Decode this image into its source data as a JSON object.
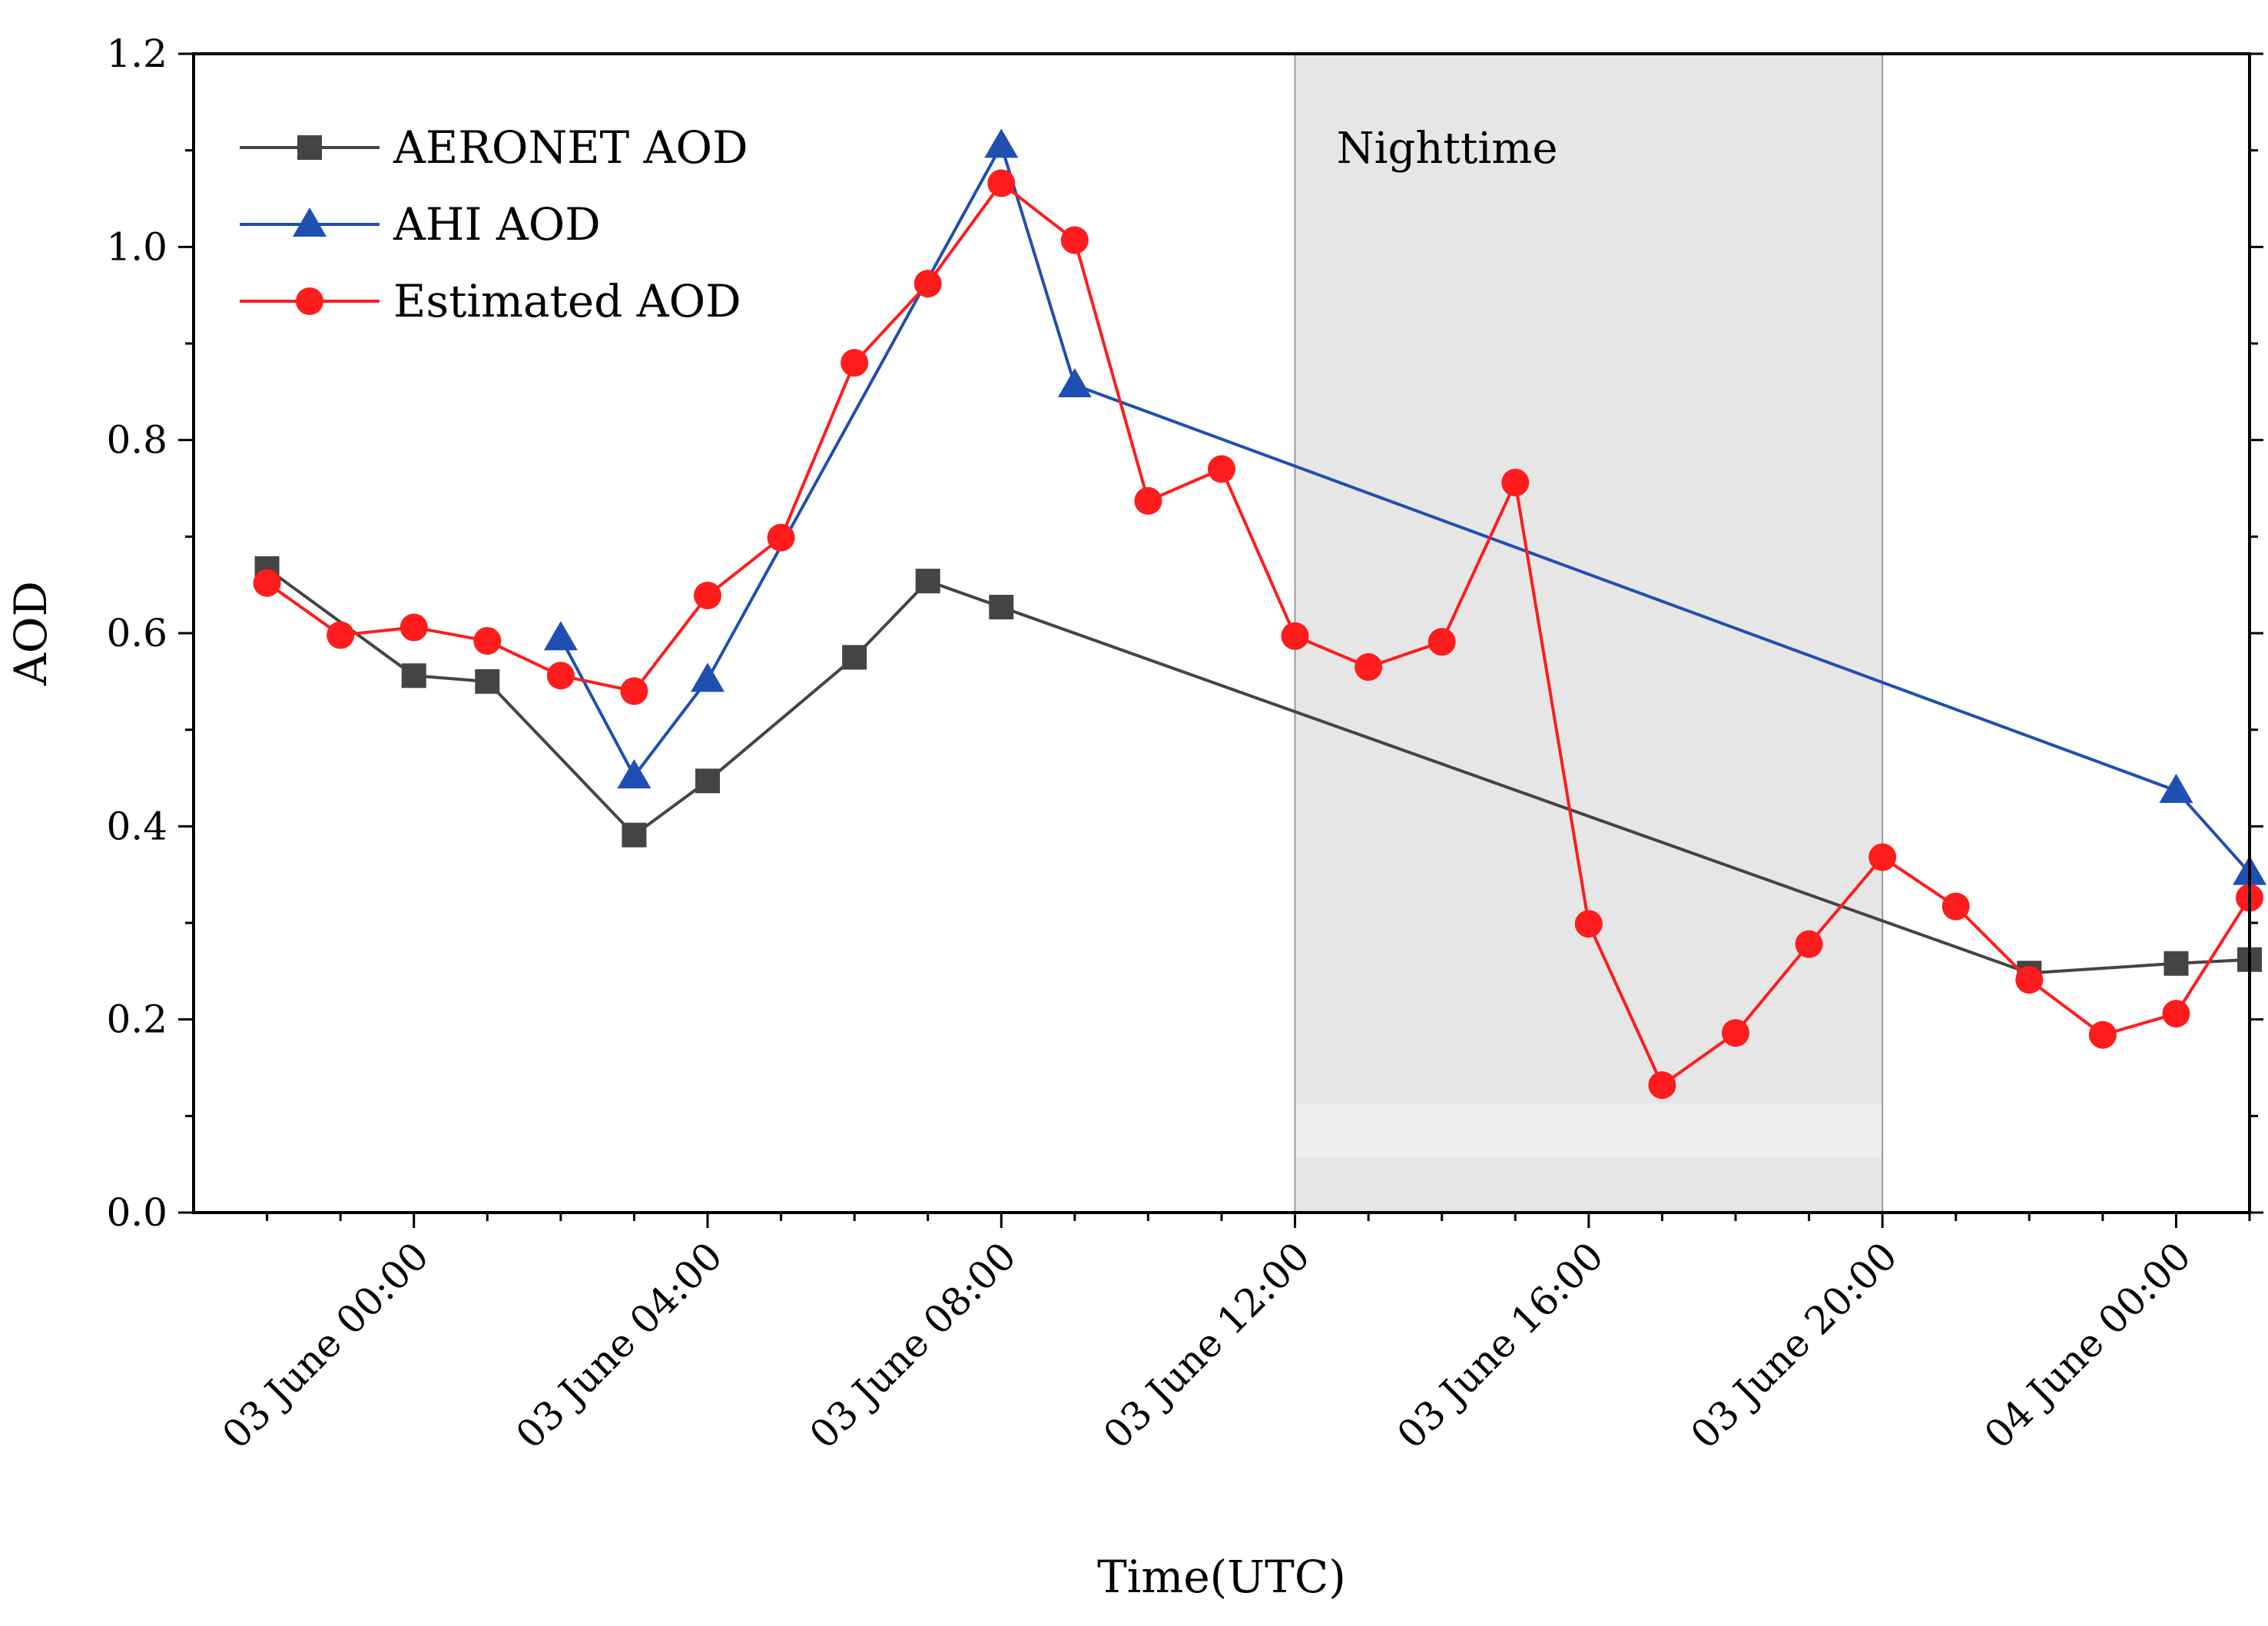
{
  "chart_data": {
    "type": "line",
    "xlabel": "Time(UTC)",
    "ylabel": "AOD",
    "x_unit": "hours since 03 June 00:00 UTC",
    "xlim": [
      -3,
      25
    ],
    "ylim": [
      0,
      1.2
    ],
    "y_ticks": [
      0.0,
      0.2,
      0.4,
      0.6,
      0.8,
      1.0,
      1.2
    ],
    "y_tick_labels": [
      "0.0",
      "0.2",
      "0.4",
      "0.6",
      "0.8",
      "1.0",
      "1.2"
    ],
    "x_ticks": [
      0,
      4,
      8,
      12,
      16,
      20,
      24
    ],
    "x_tick_labels": [
      "03 June 00:00",
      "03 June 04:00",
      "03 June 08:00",
      "03 June 12:00",
      "03 June 16:00",
      "03 June 20:00",
      "04 June 00:00"
    ],
    "grid": false,
    "legend_position": "top-left",
    "shaded_region": {
      "x_start": 12,
      "x_end": 20,
      "label": "Nighttime",
      "color": "#e6e6e6"
    },
    "series": [
      {
        "name": "AERONET AOD",
        "color": "#444444",
        "marker": "square",
        "x": [
          -2,
          0,
          1,
          3,
          4,
          6,
          7,
          8,
          22,
          24,
          25
        ],
        "values": [
          0.667,
          0.556,
          0.55,
          0.391,
          0.447,
          0.575,
          0.654,
          0.627,
          0.248,
          0.258,
          0.262
        ]
      },
      {
        "name": "AHI AOD",
        "color": "#1f4fb0",
        "marker": "triangle",
        "x": [
          2,
          3,
          4,
          8,
          9,
          24,
          25
        ],
        "values": [
          0.595,
          0.452,
          0.552,
          1.105,
          0.857,
          0.437,
          0.352
        ]
      },
      {
        "name": "Estimated AOD",
        "color": "#ff1c1c",
        "marker": "circle",
        "x": [
          -2,
          -1,
          0,
          1,
          2,
          3,
          4,
          5,
          6,
          7,
          8,
          9,
          10,
          11,
          12,
          13,
          14,
          15,
          16,
          17,
          18,
          19,
          20,
          21,
          22,
          23,
          24,
          25
        ],
        "values": [
          0.652,
          0.598,
          0.606,
          0.592,
          0.556,
          0.54,
          0.639,
          0.699,
          0.88,
          0.962,
          1.066,
          1.007,
          0.737,
          0.77,
          0.597,
          0.565,
          0.591,
          0.756,
          0.299,
          0.132,
          0.186,
          0.278,
          0.368,
          0.317,
          0.241,
          0.184,
          0.206,
          0.326
        ]
      }
    ]
  }
}
